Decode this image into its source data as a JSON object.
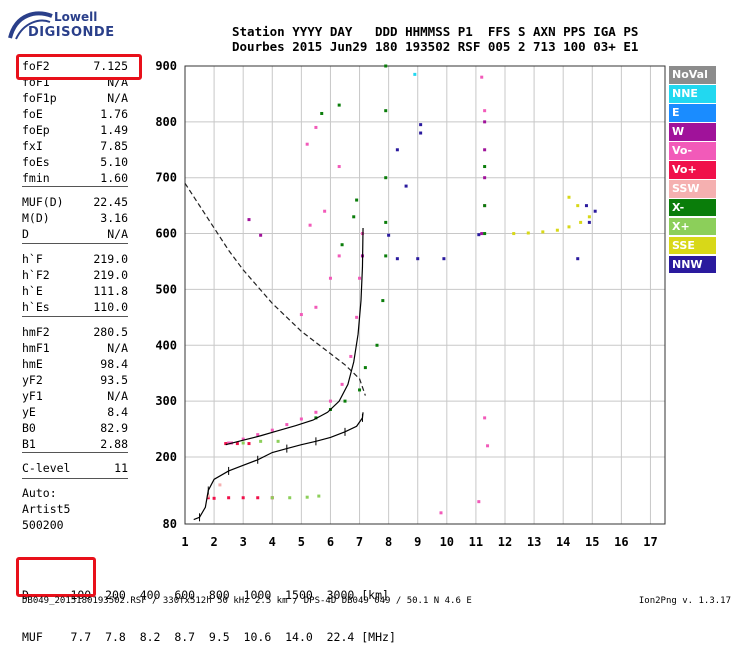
{
  "brand": {
    "line1": "Lowell",
    "line2": "DIGISONDE"
  },
  "header": {
    "row1": "Station YYYY DAY   DDD HHMMSS P1  FFS S AXN PPS IGA PS",
    "row2": "Dourbes 2015 Jun29 180 193502 RSF 005 2 713 100 03+ E1"
  },
  "parameters": [
    {
      "label": "foF2",
      "value": "7.125"
    },
    {
      "label": "foF1",
      "value": "N/A"
    },
    {
      "label": "foF1p",
      "value": "N/A"
    },
    {
      "label": "foE",
      "value": "1.76"
    },
    {
      "label": "foEp",
      "value": "1.49"
    },
    {
      "label": "fxI",
      "value": "7.85"
    },
    {
      "label": "foEs",
      "value": "5.10"
    },
    {
      "label": "fmin",
      "value": "1.60"
    },
    {
      "label": "MUF(D)",
      "value": "22.45"
    },
    {
      "label": "M(D)",
      "value": "3.16"
    },
    {
      "label": "D",
      "value": "N/A"
    },
    {
      "label": "h`F",
      "value": "219.0"
    },
    {
      "label": "h`F2",
      "value": "219.0"
    },
    {
      "label": "h`E",
      "value": "111.8"
    },
    {
      "label": "h`Es",
      "value": "110.0"
    },
    {
      "label": "hmF2",
      "value": "280.5"
    },
    {
      "label": "hmF1",
      "value": "N/A"
    },
    {
      "label": "hmE",
      "value": "98.4"
    },
    {
      "label": "yF2",
      "value": "93.5"
    },
    {
      "label": "yF1",
      "value": "N/A"
    },
    {
      "label": "yE",
      "value": "8.4"
    },
    {
      "label": "B0",
      "value": "82.9"
    },
    {
      "label": "B1",
      "value": "2.88"
    },
    {
      "label": "C-level",
      "value": "11"
    }
  ],
  "auto": {
    "line1": "Auto:",
    "line2": "Artist5",
    "line3": "500200"
  },
  "legend": [
    {
      "label": "NoVal",
      "color": "#8c8c8c"
    },
    {
      "label": "NNE",
      "color": "#22d8f0"
    },
    {
      "label": "E",
      "color": "#1a8cff"
    },
    {
      "label": "W",
      "color": "#a0129a"
    },
    {
      "label": "Vo-",
      "color": "#f25ab9"
    },
    {
      "label": "Vo+",
      "color": "#f0104a"
    },
    {
      "label": "SSW",
      "color": "#f5b0b0"
    },
    {
      "label": "X-",
      "color": "#0a7d0a"
    },
    {
      "label": "X+",
      "color": "#8ccf5a"
    },
    {
      "label": "SSE",
      "color": "#d8d818"
    },
    {
      "label": "NNW",
      "color": "#2a1a9e"
    }
  ],
  "muf_table": {
    "d_label": "D",
    "d_values": [
      "100",
      "200",
      "400",
      "600",
      "800",
      "1000",
      "1500",
      "3000"
    ],
    "d_unit": "[km]",
    "muf_label": "MUF",
    "muf_values": [
      "7.7",
      "7.8",
      "8.2",
      "8.7",
      "9.5",
      "10.6",
      "14.0",
      "22.4"
    ],
    "muf_unit": "[MHz]"
  },
  "footer": {
    "left": "DB049_2015180193502.RSF / 330fx512h 50 kHz 2.5 km / DPS-4D DB049 049 / 50.1 N 4.6 E",
    "right": "Ion2Png v. 1.3.17"
  },
  "chart_data": {
    "type": "scatter",
    "x_ticks": [
      1,
      2,
      3,
      4,
      5,
      6,
      7,
      8,
      9,
      10,
      11,
      12,
      13,
      14,
      15,
      16,
      17
    ],
    "y_ticks": [
      80,
      200,
      300,
      400,
      500,
      600,
      700,
      800,
      900
    ],
    "xlim": [
      1,
      17.5
    ],
    "ylim": [
      80,
      900
    ],
    "grid": true,
    "legend_position": "right",
    "series": [
      {
        "name": "Vo-",
        "color": "#f25ab9",
        "points": [
          [
            2.6,
            225
          ],
          [
            3.0,
            232
          ],
          [
            3.5,
            240
          ],
          [
            4.0,
            248
          ],
          [
            4.5,
            258
          ],
          [
            5.0,
            268
          ],
          [
            5.5,
            280
          ],
          [
            6.0,
            300
          ],
          [
            6.4,
            330
          ],
          [
            6.7,
            380
          ],
          [
            6.9,
            450
          ],
          [
            7.0,
            520
          ],
          [
            7.1,
            600
          ],
          [
            5.0,
            455
          ],
          [
            5.5,
            468
          ],
          [
            6.0,
            520
          ],
          [
            6.3,
            560
          ],
          [
            5.3,
            615
          ],
          [
            5.8,
            640
          ],
          [
            5.2,
            760
          ],
          [
            5.5,
            790
          ],
          [
            6.3,
            720
          ],
          [
            2.5,
            225
          ],
          [
            11.3,
            650
          ],
          [
            11.3,
            820
          ],
          [
            11.2,
            880
          ],
          [
            11.4,
            220
          ],
          [
            11.3,
            270
          ],
          [
            9.8,
            100
          ],
          [
            11.1,
            120
          ]
        ]
      },
      {
        "name": "Vo+",
        "color": "#f0104a",
        "points": [
          [
            1.8,
            127
          ],
          [
            2.0,
            126
          ],
          [
            2.5,
            127
          ],
          [
            3.0,
            127
          ],
          [
            3.5,
            127
          ],
          [
            4.0,
            127
          ],
          [
            2.4,
            224
          ],
          [
            2.8,
            224
          ],
          [
            3.2,
            224
          ]
        ]
      },
      {
        "name": "W",
        "color": "#a0129a",
        "points": [
          [
            11.3,
            700
          ],
          [
            11.3,
            750
          ],
          [
            11.3,
            800
          ],
          [
            11.2,
            600
          ],
          [
            3.2,
            625
          ],
          [
            3.6,
            597
          ],
          [
            7.1,
            560
          ]
        ]
      },
      {
        "name": "X-",
        "color": "#0a7d0a",
        "points": [
          [
            5.5,
            270
          ],
          [
            6.0,
            285
          ],
          [
            6.5,
            300
          ],
          [
            7.0,
            320
          ],
          [
            7.2,
            360
          ],
          [
            6.4,
            580
          ],
          [
            6.8,
            630
          ],
          [
            6.9,
            660
          ],
          [
            7.6,
            400
          ],
          [
            7.8,
            480
          ],
          [
            7.9,
            560
          ],
          [
            7.9,
            620
          ],
          [
            7.9,
            700
          ],
          [
            7.9,
            820
          ],
          [
            7.9,
            900
          ],
          [
            5.7,
            815
          ],
          [
            6.3,
            830
          ],
          [
            11.3,
            650
          ],
          [
            11.3,
            720
          ],
          [
            11.3,
            600
          ]
        ]
      },
      {
        "name": "X+",
        "color": "#8ccf5a",
        "points": [
          [
            4.0,
            127
          ],
          [
            4.6,
            127
          ],
          [
            5.2,
            128
          ],
          [
            5.6,
            130
          ],
          [
            3.0,
            225
          ],
          [
            3.6,
            228
          ],
          [
            4.2,
            228
          ]
        ]
      },
      {
        "name": "SSE",
        "color": "#d8d818",
        "points": [
          [
            12.3,
            600
          ],
          [
            12.8,
            601
          ],
          [
            13.3,
            603
          ],
          [
            13.8,
            606
          ],
          [
            14.2,
            612
          ],
          [
            14.6,
            620
          ],
          [
            14.9,
            630
          ],
          [
            14.5,
            650
          ],
          [
            14.2,
            665
          ]
        ]
      },
      {
        "name": "NNW",
        "color": "#2a1a9e",
        "points": [
          [
            15.1,
            640
          ],
          [
            14.9,
            620
          ],
          [
            14.8,
            650
          ],
          [
            9.1,
            780
          ],
          [
            9.1,
            795
          ],
          [
            8.6,
            685
          ],
          [
            8.3,
            750
          ],
          [
            8.0,
            597
          ],
          [
            9.9,
            555
          ],
          [
            9.0,
            555
          ],
          [
            8.3,
            555
          ],
          [
            11.1,
            598
          ],
          [
            14.5,
            555
          ]
        ]
      },
      {
        "name": "NNE",
        "color": "#22d8f0",
        "points": [
          [
            8.9,
            885
          ]
        ]
      },
      {
        "name": "SSW",
        "color": "#f5b0b0",
        "points": [
          [
            2.2,
            150
          ],
          [
            1.8,
            130
          ]
        ]
      }
    ],
    "profile_curve": [
      [
        1.3,
        88
      ],
      [
        1.5,
        92
      ],
      [
        1.7,
        110
      ],
      [
        1.8,
        140
      ],
      [
        2.0,
        160
      ],
      [
        2.5,
        175
      ],
      [
        3.0,
        185
      ],
      [
        3.5,
        195
      ],
      [
        4.0,
        208
      ],
      [
        4.5,
        215
      ],
      [
        5.0,
        222
      ],
      [
        5.5,
        228
      ],
      [
        6.0,
        235
      ],
      [
        6.5,
        245
      ],
      [
        6.9,
        255
      ],
      [
        7.1,
        270
      ],
      [
        7.12,
        280
      ]
    ],
    "trace_curve": [
      [
        2.4,
        222
      ],
      [
        3.0,
        230
      ],
      [
        3.6,
        238
      ],
      [
        4.2,
        247
      ],
      [
        4.8,
        256
      ],
      [
        5.4,
        266
      ],
      [
        5.9,
        280
      ],
      [
        6.3,
        300
      ],
      [
        6.6,
        330
      ],
      [
        6.8,
        370
      ],
      [
        6.95,
        420
      ],
      [
        7.05,
        480
      ],
      [
        7.1,
        540
      ],
      [
        7.12,
        610
      ]
    ],
    "muf_curve": [
      [
        1.0,
        690
      ],
      [
        1.5,
        650
      ],
      [
        2.0,
        610
      ],
      [
        2.5,
        570
      ],
      [
        3.0,
        535
      ],
      [
        3.5,
        505
      ],
      [
        4.0,
        475
      ],
      [
        4.5,
        450
      ],
      [
        5.0,
        425
      ],
      [
        5.5,
        405
      ],
      [
        6.0,
        385
      ],
      [
        6.5,
        365
      ],
      [
        7.0,
        340
      ],
      [
        7.2,
        310
      ]
    ]
  }
}
